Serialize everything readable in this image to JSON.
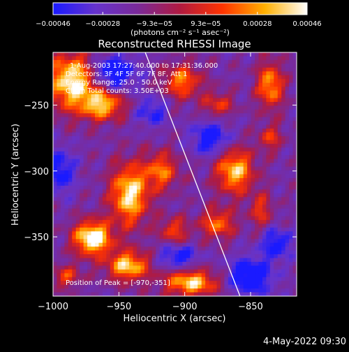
{
  "chart_data": {
    "type": "heatmap",
    "title": "Reconstructed RHESSI Image",
    "xlabel": "Heliocentric X (arcsec)",
    "ylabel": "Heliocentric Y (arcsec)",
    "xlim": [
      -1000,
      -815
    ],
    "ylim": [
      -395,
      -210
    ],
    "xticks": [
      {
        "value": -1000,
        "label": "−1000"
      },
      {
        "value": -950,
        "label": "−950"
      },
      {
        "value": -900,
        "label": "−900"
      },
      {
        "value": -850,
        "label": "−850"
      }
    ],
    "yticks": [
      {
        "value": -250,
        "label": "−250"
      },
      {
        "value": -300,
        "label": "−300"
      },
      {
        "value": -350,
        "label": "−350"
      }
    ],
    "colorbar": {
      "range": [
        -0.00046,
        0.00046
      ],
      "unit_label": "(photons cm⁻² s⁻¹ asec⁻²)",
      "ticks": [
        {
          "value": -0.00046,
          "label": "−0.00046"
        },
        {
          "value": -0.00028,
          "label": "−0.00028"
        },
        {
          "value": -9.3e-05,
          "label": "−9.3e−05"
        },
        {
          "value": 9.3e-05,
          "label": "9.3e−05"
        },
        {
          "value": 0.00028,
          "label": "0.00028"
        },
        {
          "value": 0.00046,
          "label": "0.00046"
        }
      ],
      "colors": [
        "#1a1aff",
        "#6633cc",
        "#7a2a99",
        "#b01a40",
        "#ff3300",
        "#ffb000",
        "#ffffff"
      ]
    },
    "annotations": [
      "1-Aug-2003 17:27:40.000 to 17:31:36.000",
      "Detectors: 3F 4F 5F 6F 7F 8F, Att 1",
      "Energy Range: 25.0 - 50.0 keV",
      "Clean    Total counts: 3.50E+03"
    ],
    "peak_label": "Position of Peak = [-970,-351]",
    "peak": {
      "x": -970,
      "y": -351
    },
    "limb_line": [
      {
        "x": -930,
        "y": -210
      },
      {
        "x": -858,
        "y": -395
      }
    ],
    "bright_sources": [
      {
        "x": -985,
        "y": -232,
        "sx": 14,
        "sy": 15,
        "amp": 3.2
      },
      {
        "x": -962,
        "y": -250,
        "sx": 11,
        "sy": 8,
        "amp": 2.5
      },
      {
        "x": -902,
        "y": -232,
        "sx": 10,
        "sy": 9,
        "amp": 2.1
      },
      {
        "x": -875,
        "y": -250,
        "sx": 8,
        "sy": 7,
        "amp": 1.5
      },
      {
        "x": -835,
        "y": -235,
        "sx": 7,
        "sy": 12,
        "amp": 2.4
      },
      {
        "x": -835,
        "y": -275,
        "sx": 6,
        "sy": 7,
        "amp": 1.5
      },
      {
        "x": -942,
        "y": -318,
        "sx": 10,
        "sy": 16,
        "amp": 3.0
      },
      {
        "x": -918,
        "y": -300,
        "sx": 9,
        "sy": 10,
        "amp": 2.0
      },
      {
        "x": -862,
        "y": -300,
        "sx": 10,
        "sy": 12,
        "amp": 2.7
      },
      {
        "x": -875,
        "y": -340,
        "sx": 9,
        "sy": 8,
        "amp": 2.0
      },
      {
        "x": -908,
        "y": -345,
        "sx": 8,
        "sy": 7,
        "amp": 1.6
      },
      {
        "x": -970,
        "y": -351,
        "sx": 10,
        "sy": 9,
        "amp": 3.6
      },
      {
        "x": -943,
        "y": -372,
        "sx": 11,
        "sy": 8,
        "amp": 2.8
      },
      {
        "x": -895,
        "y": -385,
        "sx": 14,
        "sy": 7,
        "amp": 2.8
      },
      {
        "x": -990,
        "y": -380,
        "sx": 8,
        "sy": 6,
        "amp": 1.5
      },
      {
        "x": -842,
        "y": -330,
        "sx": 6,
        "sy": 9,
        "amp": 1.5
      }
    ],
    "dim_regions": [
      {
        "x": -955,
        "y": -225,
        "sx": 12,
        "sy": 9,
        "amp": 2.2
      },
      {
        "x": -880,
        "y": -275,
        "sx": 10,
        "sy": 9,
        "amp": 1.8
      },
      {
        "x": -850,
        "y": -380,
        "sx": 12,
        "sy": 10,
        "amp": 2.0
      },
      {
        "x": -905,
        "y": -365,
        "sx": 10,
        "sy": 6,
        "amp": 1.6
      },
      {
        "x": -995,
        "y": -300,
        "sx": 8,
        "sy": 12,
        "amp": 1.6
      },
      {
        "x": -830,
        "y": -355,
        "sx": 8,
        "sy": 8,
        "amp": 1.6
      },
      {
        "x": -925,
        "y": -255,
        "sx": 8,
        "sy": 8,
        "amp": 1.3
      }
    ]
  },
  "footer": {
    "timestamp": "4-May-2022 09:30"
  }
}
